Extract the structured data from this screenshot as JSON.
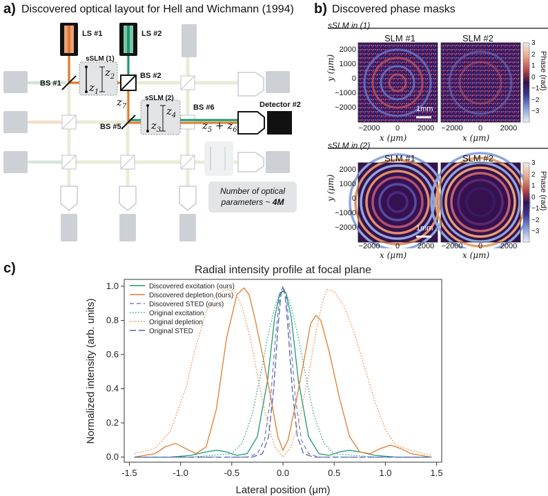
{
  "panel_a": {
    "label": "a)",
    "title": "Discovered optical layout for Hell and Wichmann (1994)",
    "components": {
      "ls1": "LS #1",
      "ls2": "LS #2",
      "bs1": "BS #1",
      "bs2": "BS #2",
      "bs5": "BS #5",
      "bs6": "BS #6",
      "detector": "Detector #2",
      "sslm1": "sSLM (1)",
      "sslm2": "sSLM (2)",
      "z1": "z",
      "z1_sub": "1",
      "z2": "z",
      "z2_sub": "2",
      "z3": "z",
      "z3_sub": "3",
      "z4": "z",
      "z4_sub": "4",
      "z7": "z",
      "z7_sub": "7",
      "z56": "z",
      "z56_sub_a": "5",
      "z56_plus": " + ",
      "z56_b": "z",
      "z56_sub_b": "6"
    },
    "params_box": {
      "line1": "Number of optical",
      "line2": "parameters ~ ",
      "value": "4M"
    }
  },
  "panel_b": {
    "label": "b)",
    "title": "Discovered phase masks",
    "row1_label": "sSLM in (1)",
    "row2_label": "sSLM in (2)",
    "slm1": "SLM #1",
    "slm2": "SLM #2",
    "y_axis": "y (μm)",
    "x_axis": "x (μm)",
    "y_ticks": [
      "2000",
      "1000",
      "0",
      "−1000",
      "−2000"
    ],
    "x_ticks": [
      "−2000",
      "0",
      "2000"
    ],
    "scale_bar": "1mm",
    "colorbar_label": "Phase (rad)",
    "colorbar_ticks": [
      "3",
      "2",
      "1",
      "0",
      "−1",
      "−2",
      "−3"
    ],
    "colors": {
      "low": "#8fa6dd",
      "mid": "#35124f",
      "high": "#f2b49a"
    }
  },
  "panel_c": {
    "label": "c)"
  },
  "chart_data": {
    "type": "line",
    "title": "Radial intensity profile at focal plane",
    "xlabel": "Lateral position (μm)",
    "ylabel": "Normalized intensity (arb. units)",
    "xlim": [
      -1.55,
      1.55
    ],
    "ylim": [
      -0.03,
      1.04
    ],
    "xticks": [
      -1.5,
      -1.0,
      -0.5,
      0.0,
      0.5,
      1.0,
      1.5
    ],
    "xtick_labels": [
      "-1.5",
      "-1.0",
      "-0.5",
      "0.0",
      "0.5",
      "1.0",
      "1.5"
    ],
    "yticks": [
      0.0,
      0.2,
      0.4,
      0.6,
      0.8,
      1.0
    ],
    "ytick_labels": [
      "0.0",
      "0.2",
      "0.4",
      "0.6",
      "0.8",
      "1.0"
    ],
    "legend_position": "top-left",
    "series": [
      {
        "name": "Discovered excitation (ours)",
        "color": "#1a9870",
        "dash": "solid",
        "x": [
          -1.45,
          -1.1,
          -0.9,
          -0.75,
          -0.65,
          -0.55,
          -0.45,
          -0.35,
          -0.25,
          -0.15,
          -0.08,
          -0.03,
          0.0,
          0.03,
          0.08,
          0.15,
          0.25,
          0.35,
          0.45,
          0.55,
          0.65,
          0.75,
          0.9,
          1.1,
          1.45
        ],
        "y": [
          0.0,
          0.0,
          0.01,
          0.03,
          0.04,
          0.03,
          0.01,
          0.02,
          0.12,
          0.45,
          0.82,
          0.96,
          0.97,
          0.96,
          0.82,
          0.45,
          0.12,
          0.02,
          0.01,
          0.03,
          0.04,
          0.03,
          0.01,
          0.0,
          0.0
        ]
      },
      {
        "name": "Discovered depletion (ours)",
        "color": "#e07b2c",
        "dash": "solid",
        "x": [
          -1.45,
          -1.25,
          -1.15,
          -1.05,
          -0.95,
          -0.85,
          -0.75,
          -0.65,
          -0.55,
          -0.45,
          -0.38,
          -0.33,
          -0.27,
          -0.2,
          -0.12,
          -0.05,
          0.0,
          0.05,
          0.12,
          0.2,
          0.27,
          0.32,
          0.37,
          0.45,
          0.55,
          0.65,
          0.75,
          0.85,
          0.95,
          1.05,
          1.15,
          1.25,
          1.45
        ],
        "y": [
          0.0,
          0.02,
          0.06,
          0.08,
          0.05,
          0.02,
          0.06,
          0.28,
          0.7,
          0.95,
          0.99,
          0.95,
          0.8,
          0.6,
          0.35,
          0.12,
          0.04,
          0.1,
          0.3,
          0.55,
          0.78,
          0.83,
          0.8,
          0.62,
          0.35,
          0.12,
          0.03,
          0.02,
          0.05,
          0.07,
          0.05,
          0.02,
          0.0
        ]
      },
      {
        "name": "Discovered STED (ours)",
        "color": "#7b7fc4",
        "dash": "dashed",
        "x": [
          -1.45,
          -0.5,
          -0.35,
          -0.25,
          -0.18,
          -0.12,
          -0.07,
          -0.03,
          0.0,
          0.03,
          0.07,
          0.12,
          0.18,
          0.25,
          0.35,
          0.5,
          1.45
        ],
        "y": [
          0.0,
          0.0,
          0.0,
          0.02,
          0.1,
          0.35,
          0.72,
          0.95,
          1.0,
          0.95,
          0.72,
          0.35,
          0.1,
          0.02,
          0.0,
          0.0,
          0.0
        ]
      },
      {
        "name": "Original excitation",
        "color": "#1aa08a",
        "dash": "dotted",
        "x": [
          -1.45,
          -0.9,
          -0.7,
          -0.5,
          -0.4,
          -0.3,
          -0.22,
          -0.15,
          -0.08,
          -0.03,
          0.0,
          0.03,
          0.08,
          0.15,
          0.22,
          0.3,
          0.4,
          0.5,
          0.7,
          0.9,
          1.45
        ],
        "y": [
          0.0,
          0.0,
          0.01,
          0.02,
          0.08,
          0.25,
          0.48,
          0.7,
          0.88,
          0.96,
          0.97,
          0.96,
          0.88,
          0.7,
          0.48,
          0.25,
          0.08,
          0.02,
          0.01,
          0.0,
          0.0
        ]
      },
      {
        "name": "Original depletion",
        "color": "#e8843c",
        "dash": "dotted",
        "x": [
          -1.45,
          -1.25,
          -1.1,
          -0.95,
          -0.85,
          -0.75,
          -0.65,
          -0.55,
          -0.47,
          -0.4,
          -0.32,
          -0.24,
          -0.16,
          -0.08,
          0.0,
          0.08,
          0.16,
          0.24,
          0.32,
          0.38,
          0.43,
          0.5,
          0.6,
          0.7,
          0.8,
          0.9,
          1.0,
          1.1,
          1.25,
          1.45
        ],
        "y": [
          0.02,
          0.05,
          0.15,
          0.4,
          0.65,
          0.85,
          0.95,
          0.98,
          0.97,
          0.88,
          0.7,
          0.45,
          0.22,
          0.06,
          0.0,
          0.06,
          0.22,
          0.45,
          0.72,
          0.9,
          0.98,
          0.97,
          0.88,
          0.72,
          0.52,
          0.32,
          0.16,
          0.07,
          0.04,
          0.01
        ]
      },
      {
        "name": "Original STED",
        "color": "#5560b0",
        "dash": "longdash",
        "x": [
          -1.45,
          -0.5,
          -0.3,
          -0.2,
          -0.14,
          -0.09,
          -0.05,
          -0.02,
          0.0,
          0.02,
          0.05,
          0.09,
          0.14,
          0.2,
          0.3,
          0.5,
          1.45
        ],
        "y": [
          0.0,
          0.0,
          0.0,
          0.02,
          0.12,
          0.4,
          0.75,
          0.95,
          0.99,
          0.95,
          0.75,
          0.4,
          0.12,
          0.02,
          0.0,
          0.0,
          0.0
        ]
      }
    ]
  }
}
